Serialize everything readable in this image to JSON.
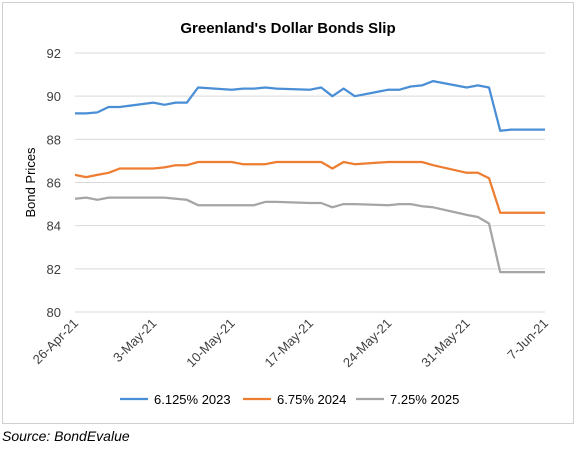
{
  "chart_data": {
    "type": "line",
    "title": "Greenland's Dollar Bonds Slip",
    "xlabel": "",
    "ylabel": "Bond Prices",
    "ylim": [
      80,
      92
    ],
    "yticks": [
      80,
      82,
      84,
      86,
      88,
      90,
      92
    ],
    "grid": true,
    "legend": "bottom",
    "x_tick_labels": [
      "26-Apr-21",
      "3-May-21",
      "10-May-21",
      "17-May-21",
      "24-May-21",
      "31-May-21",
      "7-Jun-21"
    ],
    "x_tick_dates": [
      "2021-04-26",
      "2021-05-03",
      "2021-05-10",
      "2021-05-17",
      "2021-05-24",
      "2021-05-31",
      "2021-06-07"
    ],
    "x": [
      "2021-04-26",
      "2021-04-27",
      "2021-04-28",
      "2021-04-29",
      "2021-04-30",
      "2021-05-03",
      "2021-05-04",
      "2021-05-05",
      "2021-05-06",
      "2021-05-07",
      "2021-05-10",
      "2021-05-11",
      "2021-05-12",
      "2021-05-13",
      "2021-05-14",
      "2021-05-17",
      "2021-05-18",
      "2021-05-19",
      "2021-05-20",
      "2021-05-21",
      "2021-05-24",
      "2021-05-25",
      "2021-05-26",
      "2021-05-27",
      "2021-05-28",
      "2021-05-31",
      "2021-06-01",
      "2021-06-02",
      "2021-06-03",
      "2021-06-04",
      "2021-06-07"
    ],
    "series": [
      {
        "name": "6.125% 2023",
        "color": "#4a8fd6",
        "points": [
          [
            "2021-04-26",
            89.2
          ],
          [
            "2021-04-27",
            89.2
          ],
          [
            "2021-04-28",
            89.25
          ],
          [
            "2021-04-29",
            89.5
          ],
          [
            "2021-04-30",
            89.5
          ],
          [
            "2021-05-03",
            89.7
          ],
          [
            "2021-05-04",
            89.6
          ],
          [
            "2021-05-05",
            89.7
          ],
          [
            "2021-05-06",
            89.7
          ],
          [
            "2021-05-07",
            90.4
          ],
          [
            "2021-05-10",
            90.3
          ],
          [
            "2021-05-11",
            90.35
          ],
          [
            "2021-05-12",
            90.35
          ],
          [
            "2021-05-13",
            90.4
          ],
          [
            "2021-05-14",
            90.35
          ],
          [
            "2021-05-17",
            90.3
          ],
          [
            "2021-05-18",
            90.4
          ],
          [
            "2021-05-19",
            90.0
          ],
          [
            "2021-05-20",
            90.35
          ],
          [
            "2021-05-21",
            90.0
          ],
          [
            "2021-05-24",
            90.3
          ],
          [
            "2021-05-25",
            90.3
          ],
          [
            "2021-05-26",
            90.45
          ],
          [
            "2021-05-27",
            90.5
          ],
          [
            "2021-05-28",
            90.7
          ],
          [
            "2021-05-31",
            90.4
          ],
          [
            "2021-06-01",
            90.5
          ],
          [
            "2021-06-02",
            90.4
          ],
          [
            "2021-06-03",
            88.4
          ],
          [
            "2021-06-04",
            88.45
          ],
          [
            "2021-06-07",
            88.45
          ]
        ]
      },
      {
        "name": "6.75% 2024",
        "color": "#ed7d31",
        "points": [
          [
            "2021-04-26",
            86.35
          ],
          [
            "2021-04-27",
            86.25
          ],
          [
            "2021-04-28",
            86.35
          ],
          [
            "2021-04-29",
            86.45
          ],
          [
            "2021-04-30",
            86.65
          ],
          [
            "2021-05-03",
            86.65
          ],
          [
            "2021-05-04",
            86.7
          ],
          [
            "2021-05-05",
            86.8
          ],
          [
            "2021-05-06",
            86.8
          ],
          [
            "2021-05-07",
            86.95
          ],
          [
            "2021-05-10",
            86.95
          ],
          [
            "2021-05-11",
            86.85
          ],
          [
            "2021-05-12",
            86.85
          ],
          [
            "2021-05-13",
            86.85
          ],
          [
            "2021-05-14",
            86.95
          ],
          [
            "2021-05-17",
            86.95
          ],
          [
            "2021-05-18",
            86.95
          ],
          [
            "2021-05-19",
            86.65
          ],
          [
            "2021-05-20",
            86.95
          ],
          [
            "2021-05-21",
            86.85
          ],
          [
            "2021-05-24",
            86.95
          ],
          [
            "2021-05-25",
            86.95
          ],
          [
            "2021-05-26",
            86.95
          ],
          [
            "2021-05-27",
            86.95
          ],
          [
            "2021-05-28",
            86.8
          ],
          [
            "2021-05-31",
            86.45
          ],
          [
            "2021-06-01",
            86.45
          ],
          [
            "2021-06-02",
            86.2
          ],
          [
            "2021-06-03",
            84.6
          ],
          [
            "2021-06-04",
            84.6
          ],
          [
            "2021-06-07",
            84.6
          ]
        ]
      },
      {
        "name": "7.25% 2025",
        "color": "#a5a5a5",
        "points": [
          [
            "2021-04-26",
            85.25
          ],
          [
            "2021-04-27",
            85.3
          ],
          [
            "2021-04-28",
            85.2
          ],
          [
            "2021-04-29",
            85.3
          ],
          [
            "2021-04-30",
            85.3
          ],
          [
            "2021-05-03",
            85.3
          ],
          [
            "2021-05-04",
            85.3
          ],
          [
            "2021-05-05",
            85.25
          ],
          [
            "2021-05-06",
            85.2
          ],
          [
            "2021-05-07",
            84.95
          ],
          [
            "2021-05-10",
            84.95
          ],
          [
            "2021-05-11",
            84.95
          ],
          [
            "2021-05-12",
            84.95
          ],
          [
            "2021-05-13",
            85.1
          ],
          [
            "2021-05-14",
            85.1
          ],
          [
            "2021-05-17",
            85.05
          ],
          [
            "2021-05-18",
            85.05
          ],
          [
            "2021-05-19",
            84.85
          ],
          [
            "2021-05-20",
            85.0
          ],
          [
            "2021-05-21",
            85.0
          ],
          [
            "2021-05-24",
            84.95
          ],
          [
            "2021-05-25",
            85.0
          ],
          [
            "2021-05-26",
            85.0
          ],
          [
            "2021-05-27",
            84.9
          ],
          [
            "2021-05-28",
            84.85
          ],
          [
            "2021-05-31",
            84.5
          ],
          [
            "2021-06-01",
            84.4
          ],
          [
            "2021-06-02",
            84.1
          ],
          [
            "2021-06-03",
            81.85
          ],
          [
            "2021-06-04",
            81.85
          ],
          [
            "2021-06-07",
            81.85
          ]
        ]
      }
    ]
  },
  "source": "Source: BondEvalue",
  "colors": {
    "grid": "#d9d9d9",
    "axis_text": "#404040",
    "title": "#000000"
  }
}
